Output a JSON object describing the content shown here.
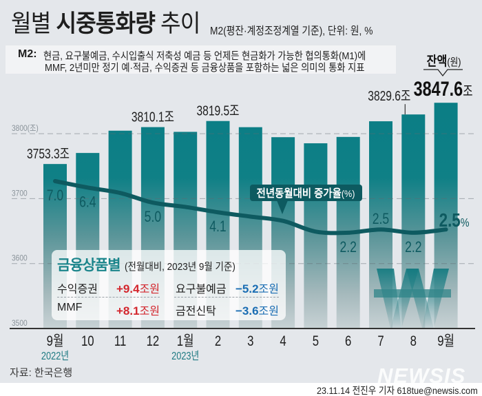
{
  "header": {
    "title_part1": "월별",
    "title_part2": "시중통화량",
    "title_part3": "추이",
    "subtitle": "M2(평잔·계정조정계열 기준), 단위: 원, %"
  },
  "definition": {
    "term": "M2",
    "separator": ":",
    "line1": "현금, 요구불예금, 수시입출식 저축성 예금 등 언제든 현금화가 가능한 협의통화(M1)에",
    "line2": "MMF, 2년미만 정기 예·적금, 수익증권 등 금융상품을 포함하는 넓은 의미의 통화 지표"
  },
  "chart_data": {
    "type": "bar",
    "title": "월별 시중통화량 추이",
    "xlabel": "",
    "ylabel": "",
    "categories": [
      "9월",
      "10",
      "11",
      "12",
      "1월",
      "2",
      "3",
      "4",
      "5",
      "6",
      "7",
      "8",
      "9월"
    ],
    "year_labels": [
      {
        "index": 0,
        "text": "2022년"
      },
      {
        "index": 4,
        "text": "2023년"
      }
    ],
    "ylim": [
      3500,
      3850
    ],
    "yticks": [
      3500,
      3600,
      3700,
      3800
    ],
    "ytick_labels": [
      "3500",
      "3600",
      "3700",
      "3800(조)"
    ],
    "grid": true,
    "series": [
      {
        "name": "잔액(원)",
        "type": "bar",
        "unit": "조",
        "values": [
          3753.3,
          3770.3,
          3804.6,
          3810.1,
          3802.8,
          3819.5,
          3810.0,
          3794.6,
          3785.2,
          3795.0,
          3819.1,
          3829.6,
          3847.6
        ]
      },
      {
        "name": "전년동월대비 증가율(%)",
        "type": "line",
        "unit": "%",
        "values": [
          7.0,
          6.4,
          5.9,
          5.0,
          4.6,
          4.1,
          3.7,
          3.3,
          2.3,
          2.2,
          2.5,
          2.2,
          2.5
        ]
      }
    ],
    "bar_labels": [
      {
        "index": 0,
        "text": "3753.3조"
      },
      {
        "index": 3,
        "text": "3810.1조"
      },
      {
        "index": 5,
        "text": "3819.5조"
      },
      {
        "index": 11,
        "text": "3829.6조"
      }
    ],
    "line_labels": [
      {
        "index": 0,
        "text": "7.0",
        "position": "below"
      },
      {
        "index": 1,
        "text": "6.4",
        "position": "below"
      },
      {
        "index": 3,
        "text": "5.0",
        "position": "below"
      },
      {
        "index": 5,
        "text": "4.1",
        "position": "below"
      },
      {
        "index": 9,
        "text": "2.2",
        "position": "below"
      },
      {
        "index": 10,
        "text": "2.5",
        "position": "above"
      },
      {
        "index": 11,
        "text": "2.2",
        "position": "below"
      }
    ],
    "highlight_balance": {
      "label": "잔액",
      "unit_label": "(원)",
      "value": "3847.6",
      "suffix": "조",
      "index": 12
    },
    "highlight_rate": {
      "value": "2.5",
      "suffix": "%",
      "index": 12
    },
    "legend": {
      "line_label": "전년동월대비 증가율",
      "line_unit": "(%)"
    },
    "colors": {
      "bar": "#0b7f86",
      "line": "#0e5a60",
      "year_label": "#1e7a82"
    }
  },
  "products": {
    "title": "금융상품별",
    "subtitle": "(전월대비, 2023년 9월 기준)",
    "rows": [
      [
        {
          "label": "수익증권",
          "amount": "+9.4",
          "unit": "조원",
          "trend": "up"
        },
        {
          "label": "요구불예금",
          "amount": "−5.2",
          "unit": "조원",
          "trend": "down"
        }
      ],
      [
        {
          "label": "MMF",
          "amount": "+8.1",
          "unit": "조원",
          "trend": "up"
        },
        {
          "label": "금전신탁",
          "amount": "−3.6",
          "unit": "조원",
          "trend": "down"
        }
      ]
    ],
    "colors": {
      "positive": "#d3262d",
      "negative": "#1a6db3",
      "title": "#1b858b"
    }
  },
  "footer": {
    "source": "자료: 한국은행",
    "credit": "23.11.14 전진우 기자 618tue@newsis.com",
    "watermark": "NEWSIS"
  }
}
